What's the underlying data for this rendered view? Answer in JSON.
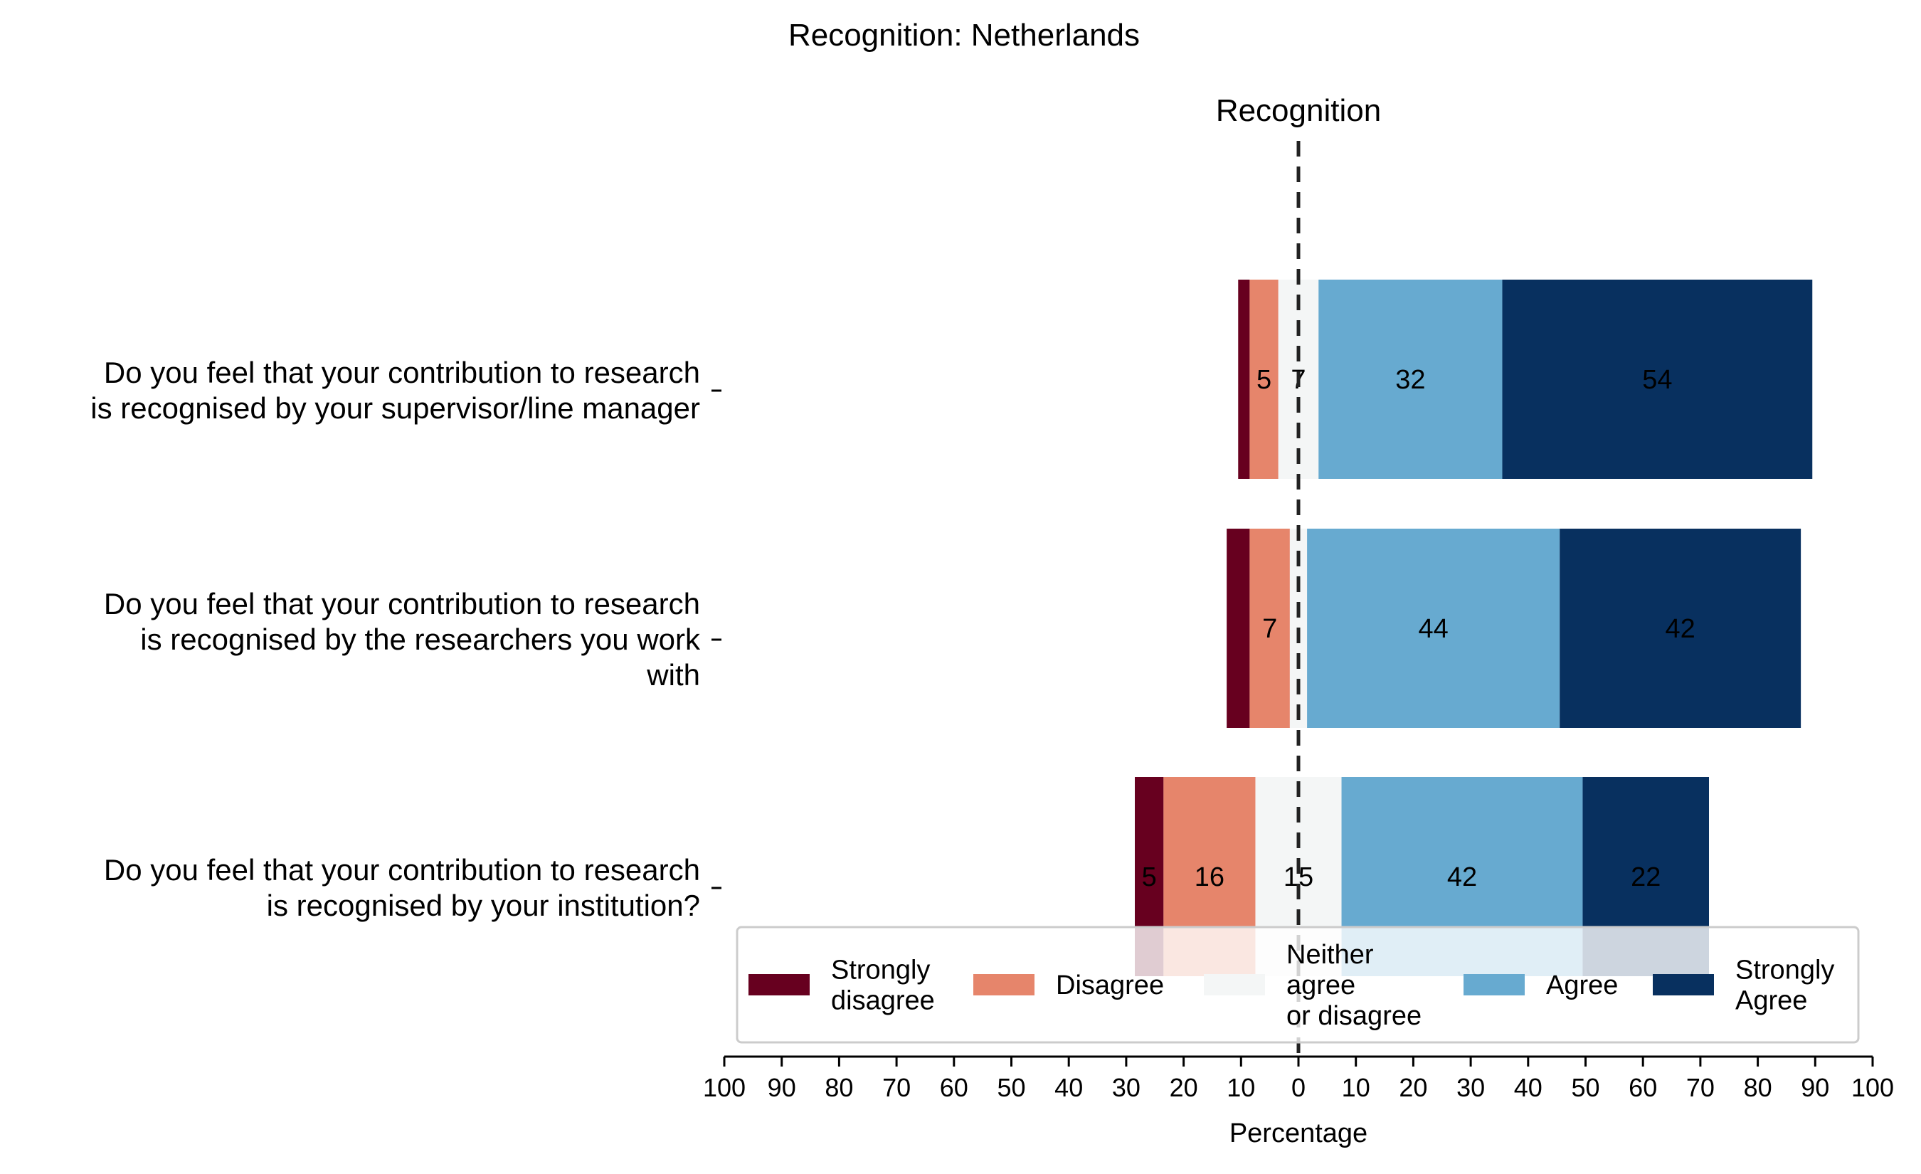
{
  "chart_data": {
    "type": "bar",
    "orientation": "horizontal-diverging",
    "title": "Recognition: Netherlands",
    "subtitle": "Recognition",
    "xlabel": "Percentage",
    "xlim": [
      -100,
      100
    ],
    "xticks": [
      -100,
      -90,
      -80,
      -70,
      -60,
      -50,
      -40,
      -30,
      -20,
      -10,
      0,
      10,
      20,
      30,
      40,
      50,
      60,
      70,
      80,
      90,
      100
    ],
    "xtick_labels": [
      "100",
      "90",
      "80",
      "70",
      "60",
      "50",
      "40",
      "30",
      "20",
      "10",
      "0",
      "10",
      "20",
      "30",
      "40",
      "50",
      "60",
      "70",
      "80",
      "90",
      "100"
    ],
    "categories": [
      [
        "Do you feel that your contribution to research",
        "is recognised by your supervisor/line manager"
      ],
      [
        "Do you feel that your contribution to research",
        "is recognised by the researchers you work",
        "with"
      ],
      [
        "Do you feel that your contribution to research",
        "is recognised by your institution?"
      ]
    ],
    "series": [
      {
        "name": "Strongly disagree",
        "legend_lines": [
          "Strongly",
          "disagree"
        ],
        "color": "#67001f",
        "values": [
          2,
          4,
          5
        ],
        "labels": [
          "",
          "",
          "5"
        ]
      },
      {
        "name": "Disagree",
        "legend_lines": [
          "Disagree"
        ],
        "color": "#e6856b",
        "values": [
          5,
          7,
          16
        ],
        "labels": [
          "5",
          "7",
          "16"
        ]
      },
      {
        "name": "Neither agree or disagree",
        "legend_lines": [
          "Neither",
          "agree",
          "or disagree"
        ],
        "color": "#f4f6f6",
        "values": [
          7,
          3,
          15
        ],
        "labels": [
          "7",
          "",
          "15"
        ]
      },
      {
        "name": "Agree",
        "legend_lines": [
          "Agree"
        ],
        "color": "#67aad0",
        "values": [
          32,
          44,
          42
        ],
        "labels": [
          "32",
          "44",
          "42"
        ]
      },
      {
        "name": "Strongly Agree",
        "legend_lines": [
          "Strongly",
          "Agree"
        ],
        "color": "#08305f",
        "values": [
          54,
          42,
          22
        ],
        "labels": [
          "54",
          "42",
          "22"
        ]
      }
    ],
    "center_line": "dashed at 0",
    "grid": false,
    "legend_placement": "lower-center"
  }
}
